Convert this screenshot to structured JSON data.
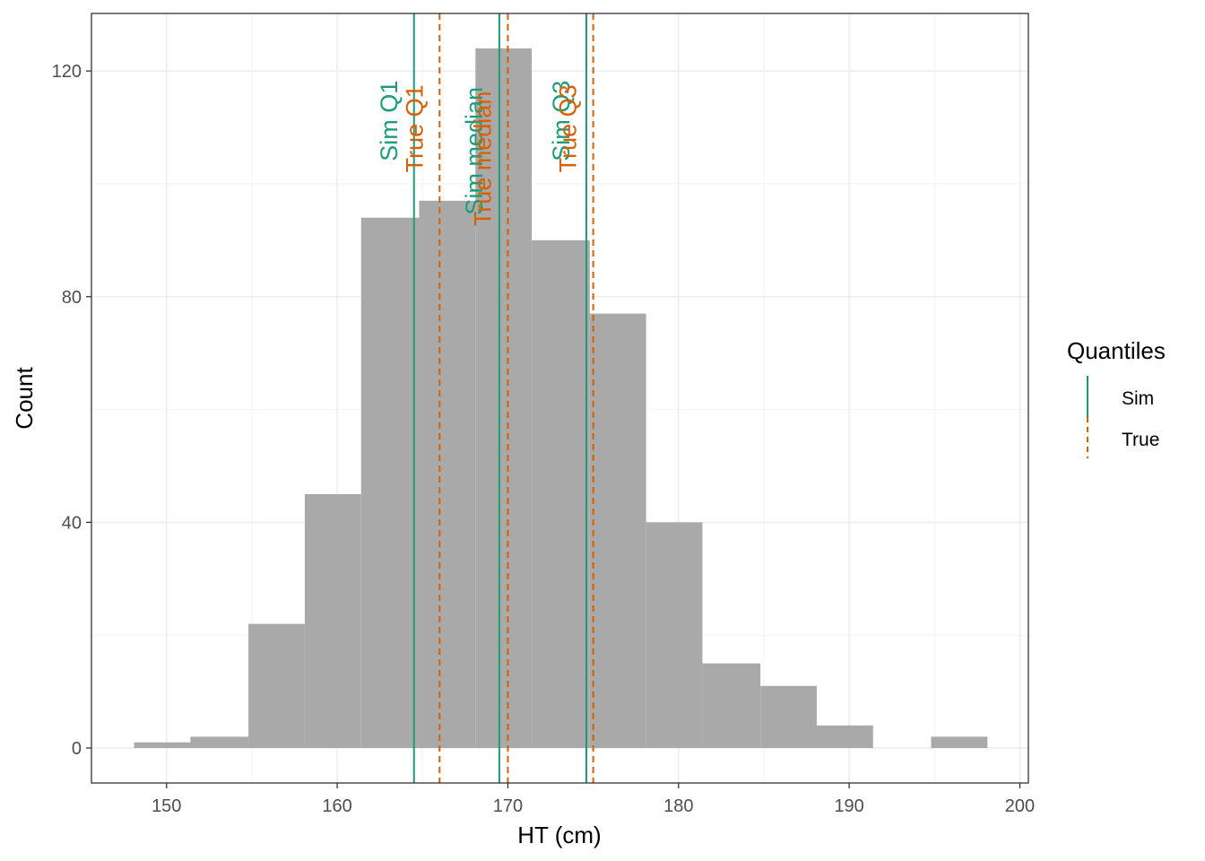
{
  "chart_data": {
    "type": "bar",
    "subtype": "histogram",
    "xlabel": "HT (cm)",
    "ylabel": "Count",
    "xlim": [
      145.6,
      200.5
    ],
    "ylim": [
      -6.2,
      130.2
    ],
    "x_ticks": [
      150,
      160,
      170,
      180,
      190,
      200
    ],
    "y_ticks": [
      0,
      40,
      80,
      120
    ],
    "grid": true,
    "bins": [
      {
        "x0": 148.1,
        "x1": 151.4,
        "count": 1
      },
      {
        "x0": 151.4,
        "x1": 154.8,
        "count": 2
      },
      {
        "x0": 154.8,
        "x1": 158.1,
        "count": 22
      },
      {
        "x0": 158.1,
        "x1": 161.4,
        "count": 45
      },
      {
        "x0": 161.4,
        "x1": 164.8,
        "count": 94
      },
      {
        "x0": 164.8,
        "x1": 168.1,
        "count": 97
      },
      {
        "x0": 168.1,
        "x1": 171.4,
        "count": 124
      },
      {
        "x0": 171.4,
        "x1": 174.8,
        "count": 90
      },
      {
        "x0": 174.8,
        "x1": 178.1,
        "count": 77
      },
      {
        "x0": 178.1,
        "x1": 181.4,
        "count": 40
      },
      {
        "x0": 181.4,
        "x1": 184.8,
        "count": 15
      },
      {
        "x0": 184.8,
        "x1": 188.1,
        "count": 11
      },
      {
        "x0": 188.1,
        "x1": 191.4,
        "count": 4
      },
      {
        "x0": 191.4,
        "x1": 194.8,
        "count": 0
      },
      {
        "x0": 194.8,
        "x1": 198.1,
        "count": 2
      }
    ],
    "bar_color": "#a9a9a9",
    "quantile_lines": [
      {
        "label": "Sim Q1",
        "x": 164.5,
        "group": "Sim",
        "label_y": 104.0
      },
      {
        "label": "True Q1",
        "x": 166.0,
        "group": "True",
        "label_y": 102.0
      },
      {
        "label": "Sim median",
        "x": 169.5,
        "group": "Sim",
        "label_y": 94.5
      },
      {
        "label": "True median",
        "x": 170.0,
        "group": "True",
        "label_y": 92.5
      },
      {
        "label": "Sim Q3",
        "x": 174.6,
        "group": "Sim",
        "label_y": 104.0
      },
      {
        "label": "True Q3",
        "x": 175.0,
        "group": "True",
        "label_y": 102.0
      }
    ],
    "legend": {
      "title": "Quantiles",
      "placement": "right",
      "entries": [
        {
          "name": "Sim",
          "color": "#1b9e77",
          "linetype": "solid"
        },
        {
          "name": "True",
          "color": "#d95f02",
          "linetype": "dashed"
        }
      ]
    }
  }
}
